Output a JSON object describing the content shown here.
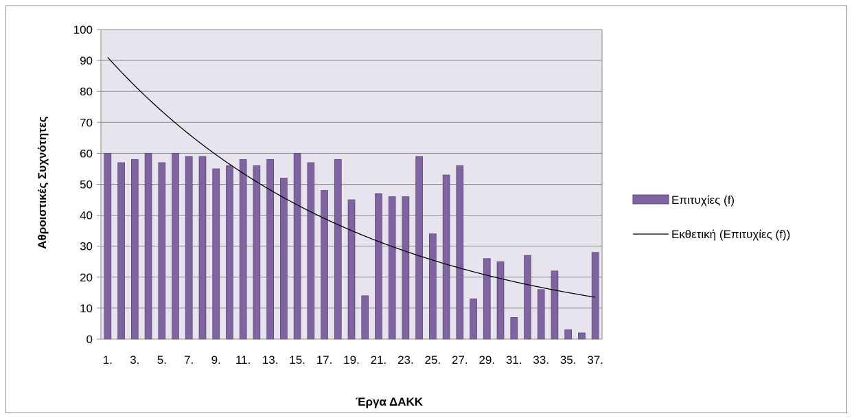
{
  "chart_data": {
    "type": "bar",
    "title": "",
    "xlabel": "Έργα ΔΑΚΚ",
    "ylabel": "Αθροιστικές Συχνότητες",
    "ylim": [
      0,
      100
    ],
    "yticks": [
      0,
      10,
      20,
      30,
      40,
      50,
      60,
      70,
      80,
      90,
      100
    ],
    "grid": true,
    "legend_position": "right",
    "categories": [
      "1.",
      "2.",
      "3.",
      "4.",
      "5.",
      "6.",
      "7.",
      "8.",
      "9.",
      "10.",
      "11.",
      "12.",
      "13.",
      "14.",
      "15.",
      "16.",
      "17.",
      "18.",
      "19.",
      "20.",
      "21.",
      "22.",
      "23.",
      "24.",
      "25.",
      "26.",
      "27.",
      "28.",
      "29.",
      "30.",
      "31.",
      "32.",
      "33.",
      "34.",
      "35.",
      "36.",
      "37."
    ],
    "visible_tick_labels": [
      "1.",
      "3.",
      "5.",
      "7.",
      "9.",
      "11.",
      "13.",
      "15.",
      "17.",
      "19.",
      "21.",
      "23.",
      "25.",
      "27.",
      "29.",
      "31.",
      "33.",
      "35.",
      "37."
    ],
    "series": [
      {
        "name": "Επιτυχίες (f)",
        "kind": "bar",
        "color": "#8064a2",
        "values": [
          60,
          57,
          58,
          60,
          57,
          60,
          59,
          59,
          55,
          56,
          58,
          56,
          58,
          52,
          60,
          57,
          48,
          58,
          45,
          14,
          47,
          46,
          46,
          59,
          34,
          53,
          56,
          13,
          26,
          25,
          7,
          27,
          16,
          22,
          3,
          2,
          28
        ]
      },
      {
        "name": "Εκθετική (Επιτυχίες (f))",
        "kind": "trendline-exponential",
        "color": "#000000",
        "start_value": 91,
        "end_value": 13.5
      }
    ],
    "plot_background": "#e8e4ee"
  }
}
